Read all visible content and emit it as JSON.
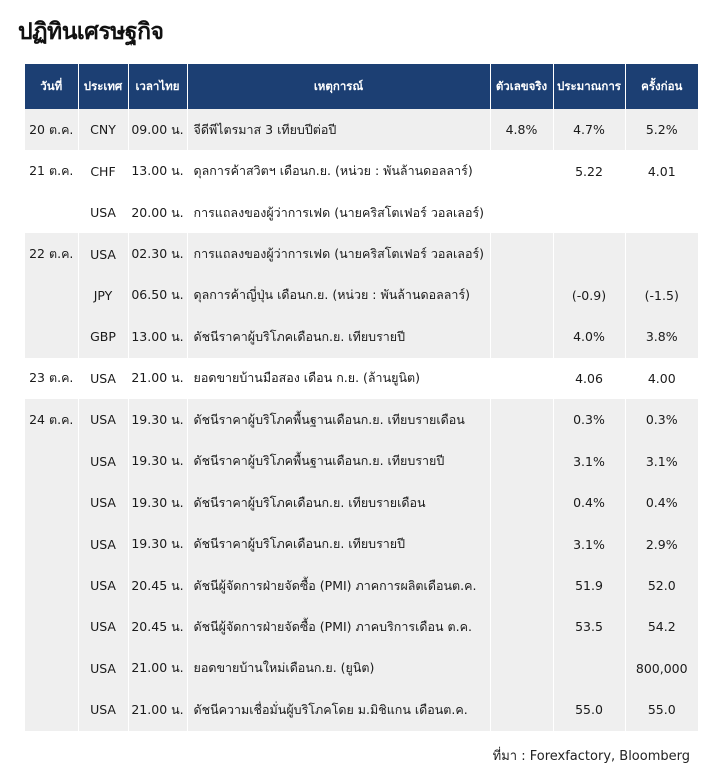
{
  "title": "ปฏิทินเศรษฐกิจ",
  "headers": [
    "วันที่",
    "ประเทศ",
    "เวลาไทย",
    "เหตุการณ์",
    "ตัวเลขจริง",
    "ประมาณการ",
    "ครั้งก่อน"
  ],
  "rows": [
    {
      "date": "20 ต.ค.",
      "country": "CNY",
      "time": "09.00 น.",
      "event": "จีดีพีไตรมาส 3 เทียบปีต่อปี",
      "actual": "4.8%",
      "forecast": "4.7%",
      "previous": "5.2%"
    },
    {
      "date": "21 ต.ค.",
      "country": "CHF",
      "time": "13.00 น.",
      "event": "ดุลการค้าสวิตฯ เดือนก.ย. (หน่วย : พันล้านดอลลาร์)",
      "actual": "",
      "forecast": "5.22",
      "previous": "4.01"
    },
    {
      "date": "",
      "country": "USA",
      "time": "20.00 น.",
      "event": "การแถลงของผู้ว่าการเฟด (นายคริสโตเฟอร์ วอลเลอร์)",
      "actual": "",
      "forecast": "",
      "previous": ""
    },
    {
      "date": "22 ต.ค.",
      "country": "USA",
      "time": "02.30 น.",
      "event": "การแถลงของผู้ว่าการเฟด (นายคริสโตเฟอร์ วอลเลอร์)",
      "actual": "",
      "forecast": "",
      "previous": ""
    },
    {
      "date": "",
      "country": "JPY",
      "time": "06.50 น.",
      "event": "ดุลการค้าญี่ปุ่น เดือนก.ย. (หน่วย : พันล้านดอลลาร์)",
      "actual": "",
      "forecast": "(-0.9)",
      "previous": "(-1.5)"
    },
    {
      "date": "",
      "country": "GBP",
      "time": "13.00 น.",
      "event": "ดัชนีราคาผู้บริโภคเดือนก.ย. เทียบรายปี",
      "actual": "",
      "forecast": "4.0%",
      "previous": "3.8%"
    },
    {
      "date": "23 ต.ค.",
      "country": "USA",
      "time": "21.00 น.",
      "event": "ยอดขายบ้านมือสอง เดือน ก.ย. (ล้านยูนิต)",
      "actual": "",
      "forecast": "4.06",
      "previous": "4.00"
    },
    {
      "date": "24 ต.ค.",
      "country": "USA",
      "time": "19.30 น.",
      "event": "ดัชนีราคาผู้บริโภคพื้นฐานเดือนก.ย. เทียบรายเดือน",
      "actual": "",
      "forecast": "0.3%",
      "previous": "0.3%"
    },
    {
      "date": "",
      "country": "USA",
      "time": "19.30 น.",
      "event": "ดัชนีราคาผู้บริโภคพื้นฐานเดือนก.ย. เทียบรายปี",
      "actual": "",
      "forecast": "3.1%",
      "previous": "3.1%"
    },
    {
      "date": "",
      "country": "USA",
      "time": "19.30 น.",
      "event": "ดัชนีราคาผู้บริโภคเดือนก.ย. เทียบรายเดือน",
      "actual": "",
      "forecast": "0.4%",
      "previous": "0.4%"
    },
    {
      "date": "",
      "country": "USA",
      "time": "19.30 น.",
      "event": "ดัชนีราคาผู้บริโภคเดือนก.ย. เทียบรายปี",
      "actual": "",
      "forecast": "3.1%",
      "previous": "2.9%"
    },
    {
      "date": "",
      "country": "USA",
      "time": "20.45 น.",
      "event": "ดัชนีผู้จัดการฝ่ายจัดซื้อ (PMI) ภาคการผลิตเดือนต.ค.",
      "actual": "",
      "forecast": "51.9",
      "previous": "52.0"
    },
    {
      "date": "",
      "country": "USA",
      "time": "20.45 น.",
      "event": "ดัชนีผู้จัดการฝ่ายจัดซื้อ (PMI) ภาคบริการเดือน ต.ค.",
      "actual": "",
      "forecast": "53.5",
      "previous": "54.2"
    },
    {
      "date": "",
      "country": "USA",
      "time": "21.00 น.",
      "event": "ยอดขายบ้านใหม่เดือนก.ย. (ยูนิต)",
      "actual": "",
      "forecast": "",
      "previous": "800,000"
    },
    {
      "date": "",
      "country": "USA",
      "time": "21.00 น.",
      "event": "ดัชนีความเชื่อมั่นผู้บริโภคโดย ม.มิชิแกน เดือนต.ค.",
      "actual": "",
      "forecast": "55.0",
      "previous": "55.0"
    }
  ],
  "source": "ที่มา : Forexfactory, Bloomberg",
  "colors": {
    "header_bg": "#1c3f73",
    "header_text": "#ffffff",
    "row_shaded": "#efefef",
    "row_plain": "#ffffff"
  }
}
